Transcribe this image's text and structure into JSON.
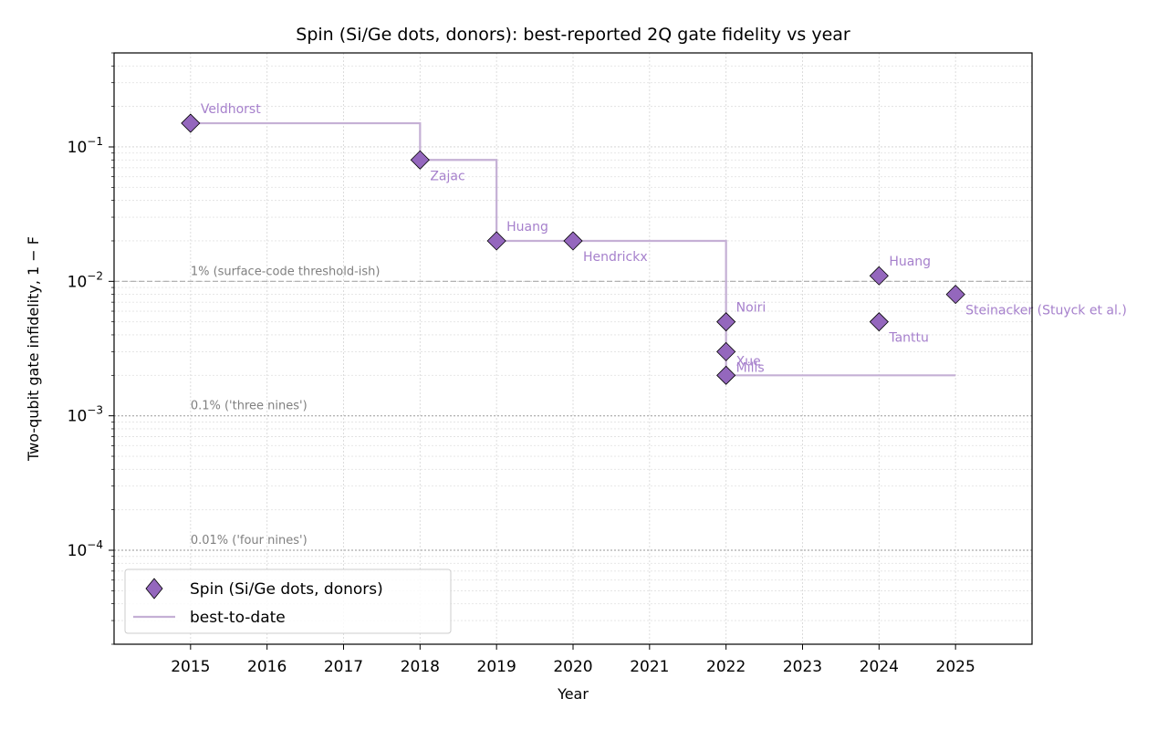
{
  "chart_data": {
    "type": "scatter",
    "title": "Spin (Si/Ge dots, donors): best-reported 2Q gate fidelity vs year",
    "xlabel": "Year",
    "ylabel": "Two-qubit gate infidelity, 1 − F",
    "yscale": "log",
    "xlim": [
      2014,
      2026
    ],
    "ylim": [
      2e-05,
      0.5
    ],
    "grid": true,
    "legend_position": "lower-left",
    "x_ticks": [
      2015,
      2016,
      2017,
      2018,
      2019,
      2020,
      2021,
      2022,
      2023,
      2024,
      2025
    ],
    "y_ticks": [
      {
        "value": 0.1,
        "base": "10",
        "exp": "−1"
      },
      {
        "value": 0.01,
        "base": "10",
        "exp": "−2"
      },
      {
        "value": 0.001,
        "base": "10",
        "exp": "−3"
      },
      {
        "value": 0.0001,
        "base": "10",
        "exp": "−4"
      }
    ],
    "series": [
      {
        "name": "Spin (Si/Ge dots, donors)",
        "marker": "diamond",
        "color": "#9467bd",
        "points": [
          {
            "x": 2015,
            "y": 0.15,
            "label": "Veldhorst",
            "label_pos": "above"
          },
          {
            "x": 2018,
            "y": 0.08,
            "label": "Zajac",
            "label_pos": "below"
          },
          {
            "x": 2019,
            "y": 0.02,
            "label": "Huang",
            "label_pos": "above"
          },
          {
            "x": 2020,
            "y": 0.02,
            "label": "Hendrickx",
            "label_pos": "below"
          },
          {
            "x": 2022,
            "y": 0.005,
            "label": "Noiri",
            "label_pos": "above"
          },
          {
            "x": 2022,
            "y": 0.003,
            "label": "Mills",
            "label_pos": "below"
          },
          {
            "x": 2022,
            "y": 0.002,
            "label": "Xue",
            "label_pos": "above"
          },
          {
            "x": 2024,
            "y": 0.011,
            "label": "Huang",
            "label_pos": "above"
          },
          {
            "x": 2024,
            "y": 0.005,
            "label": "Tanttu",
            "label_pos": "below"
          },
          {
            "x": 2025,
            "y": 0.008,
            "label": "Steinacker (Stuyck et al.)",
            "label_pos": "below"
          }
        ]
      },
      {
        "name": "best-to-date",
        "type": "step",
        "color": "#c5b0d5",
        "x": [
          2015,
          2018,
          2018,
          2019,
          2019,
          2022,
          2022,
          2025
        ],
        "y": [
          0.15,
          0.15,
          0.08,
          0.08,
          0.02,
          0.02,
          0.002,
          0.002
        ]
      }
    ],
    "reference_lines": [
      {
        "y": 0.01,
        "label": "1% (surface-code threshold-ish)",
        "style": "dashed"
      },
      {
        "y": 0.001,
        "label": "0.1% ('three nines')",
        "style": "dotted"
      },
      {
        "y": 0.0001,
        "label": "0.01% ('four nines')",
        "style": "dotted"
      }
    ]
  }
}
